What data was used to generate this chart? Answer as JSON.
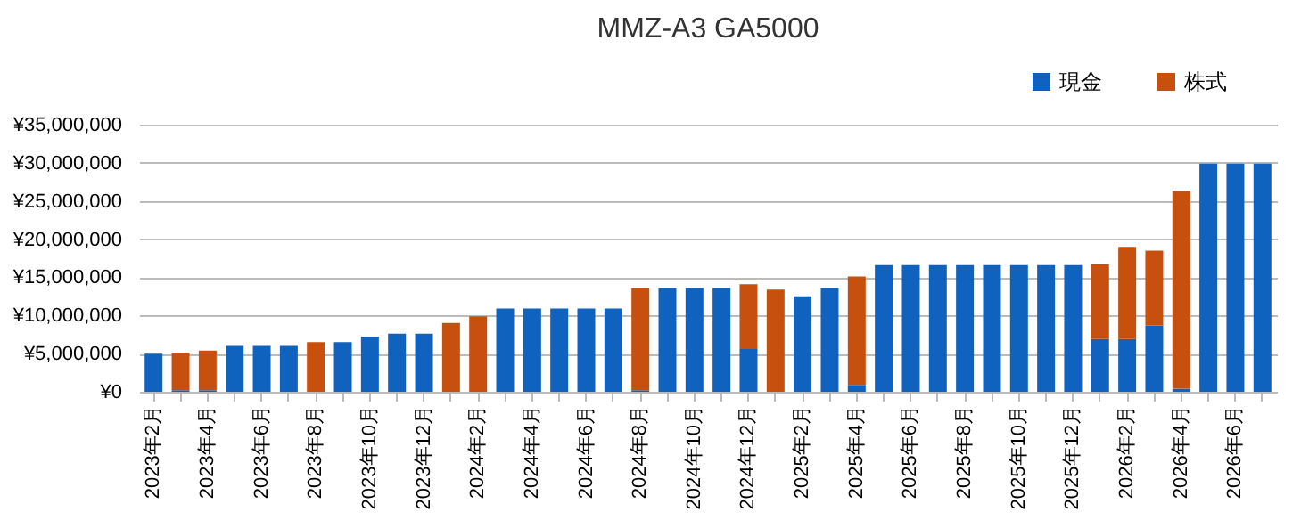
{
  "chart_data": {
    "type": "bar",
    "title": "MMZ-A3 GA5000",
    "stacked": true,
    "grid": "y",
    "legend": "top right",
    "categories": [
      "2023年2月",
      null,
      "2023年4月",
      null,
      "2023年6月",
      null,
      "2023年8月",
      null,
      "2023年10月",
      null,
      "2023年12月",
      null,
      "2024年2月",
      null,
      "2024年4月",
      null,
      "2024年6月",
      null,
      "2024年8月",
      null,
      "2024年10月",
      null,
      "2024年12月",
      null,
      "2025年2月",
      null,
      "2025年4月",
      null,
      "2025年6月",
      null,
      "2025年8月",
      null,
      "2025年10月",
      null,
      "2025年12月",
      null,
      "2026年2月",
      null,
      "2026年4月",
      null,
      "2026年6月",
      null
    ],
    "ylim": [
      0,
      35000000
    ],
    "yticks": [
      {
        "value": 0,
        "label": "¥0"
      },
      {
        "value": 5000000,
        "label": "¥5,000,000"
      },
      {
        "value": 10000000,
        "label": "¥10,000,000"
      },
      {
        "value": 15000000,
        "label": "¥15,000,000"
      },
      {
        "value": 20000000,
        "label": "¥20,000,000"
      },
      {
        "value": 25000000,
        "label": "¥25,000,000"
      },
      {
        "value": 30000000,
        "label": "¥30,000,000"
      },
      {
        "value": 35000000,
        "label": "¥35,000,000"
      }
    ],
    "series": [
      {
        "name": "現金",
        "color": "#0f63be",
        "values": [
          5000000,
          200000,
          200000,
          6000000,
          6000000,
          6000000,
          0,
          6500000,
          7200000,
          7600000,
          7600000,
          0,
          0,
          10900000,
          10900000,
          10900000,
          10900000,
          10900000,
          200000,
          13600000,
          13600000,
          13600000,
          5600000,
          0,
          12500000,
          13600000,
          900000,
          16600000,
          16600000,
          16600000,
          16600000,
          16600000,
          16600000,
          16600000,
          16600000,
          6900000,
          6900000,
          8700000,
          400000,
          29900000,
          29900000,
          29900000
        ]
      },
      {
        "name": "株式",
        "color": "#c8500f",
        "values": [
          0,
          4900000,
          5200000,
          0,
          0,
          0,
          6500000,
          0,
          0,
          0,
          0,
          9000000,
          9900000,
          0,
          0,
          0,
          0,
          0,
          13400000,
          0,
          0,
          0,
          8500000,
          13400000,
          0,
          0,
          14200000,
          0,
          0,
          0,
          0,
          0,
          0,
          0,
          0,
          9800000,
          12100000,
          9800000,
          25900000,
          0,
          0,
          0
        ]
      }
    ]
  }
}
